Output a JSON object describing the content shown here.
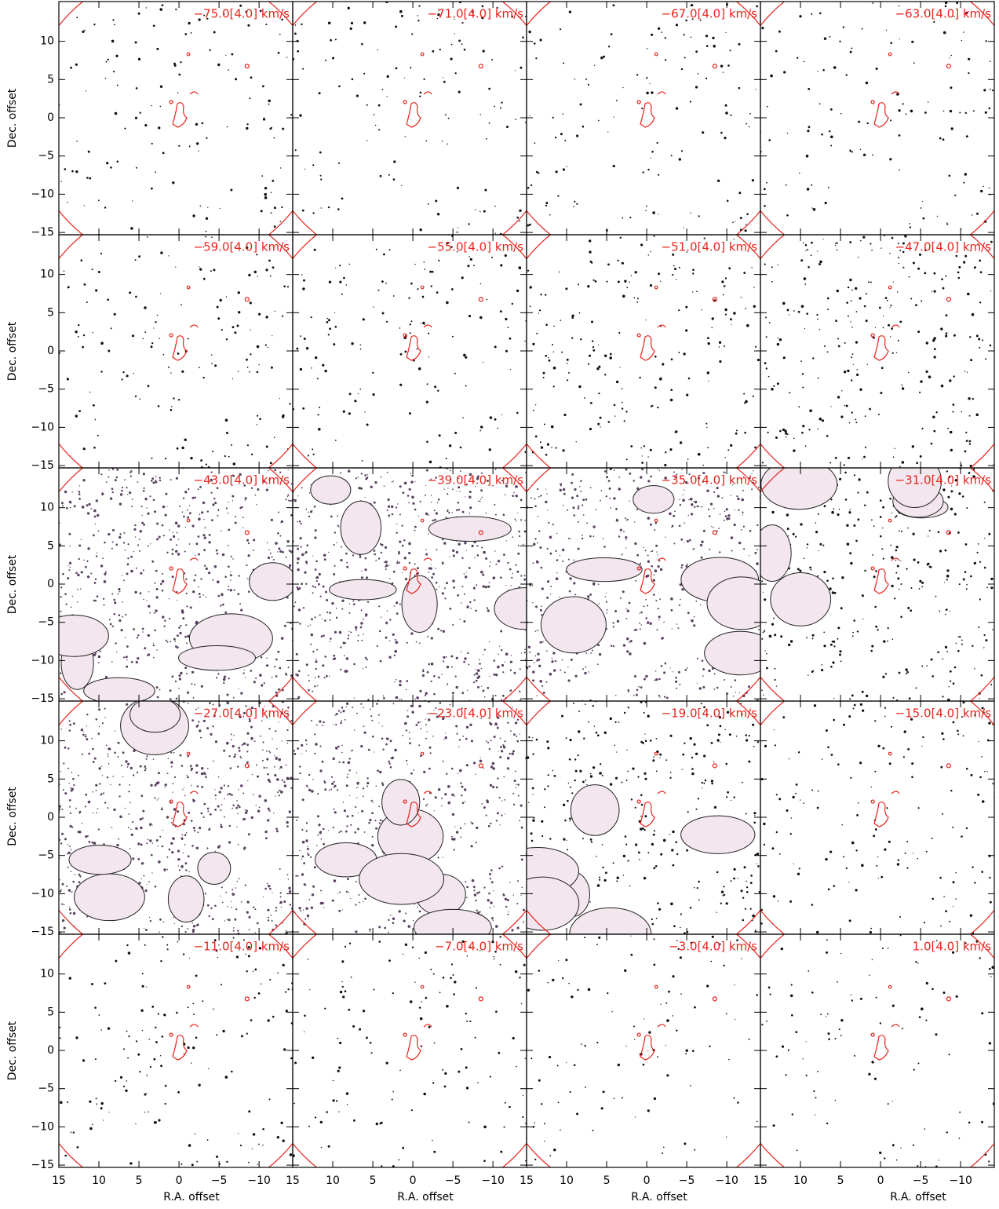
{
  "figure": {
    "panels": [
      "−75.0[4.0] km/s",
      "−71.0[4.0] km/s",
      "−67.0[4.0] km/s",
      "−63.0[4.0] km/s",
      "−59.0[4.0] km/s",
      "−55.0[4.0] km/s",
      "−51.0[4.0] km/s",
      "−47.0[4.0] km/s",
      "−43.0[4.0] km/s",
      "−39.0[4.0] km/s",
      "−35.0[4.0] km/s",
      "−31.0[4.0] km/s",
      "−27.0[4.0] km/s",
      "−23.0[4.0] km/s",
      "−19.0[4.0] km/s",
      "−15.0[4.0] km/s",
      "−11.0[4.0] km/s",
      "−7.0[4.0] km/s",
      "−3.0[4.0] km/s",
      "1.0[4.0] km/s"
    ],
    "x_label": "R.A. offset",
    "y_label": "Dec. offset",
    "xlim": [
      15,
      -14.2
    ],
    "ylim": [
      -15.3,
      15.2
    ],
    "xticks": [
      15,
      10,
      5,
      0,
      {
        "value": -5,
        "label": "−5"
      },
      {
        "value": -10,
        "label": "−10"
      }
    ],
    "yticks": [
      {
        "value": -15,
        "label": "−15"
      },
      {
        "value": -10,
        "label": "−10"
      },
      {
        "value": -5,
        "label": "−5"
      },
      0,
      5,
      10
    ]
  }
}
